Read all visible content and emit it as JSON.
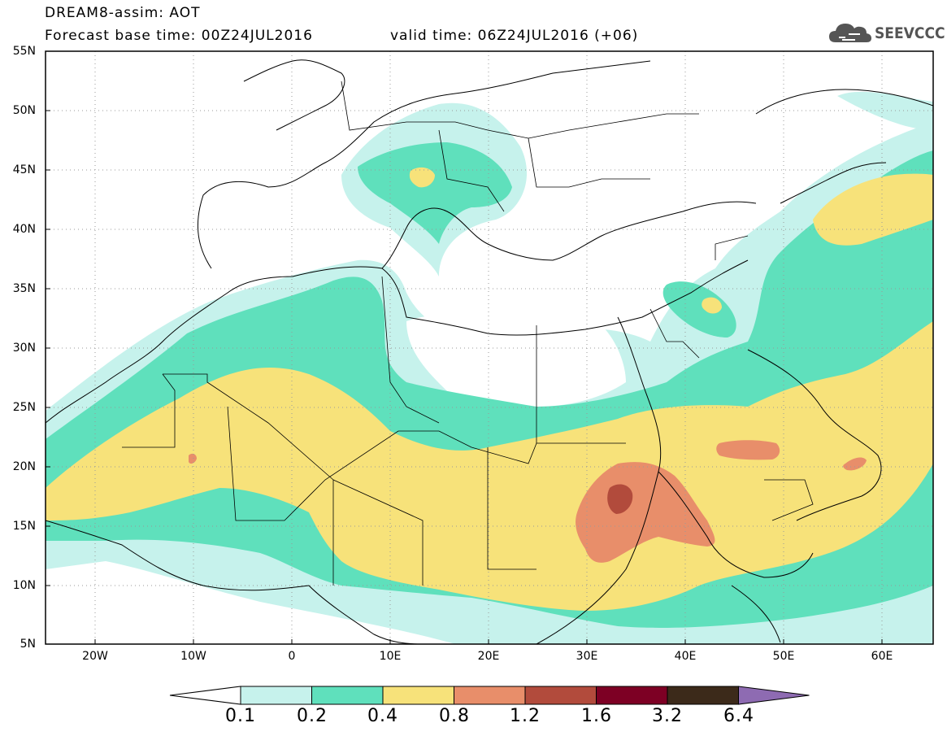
{
  "title": {
    "line1": "DREAM8-assim: AOT",
    "line2": "Forecast base time: 00Z24JUL2016",
    "valid": "valid time: 06Z24JUL2016 (+06)"
  },
  "logo": {
    "text": "SEEVCCC",
    "icon": "cloud-icon"
  },
  "map": {
    "lat_labels": [
      "55N",
      "50N",
      "45N",
      "40N",
      "35N",
      "30N",
      "25N",
      "20N",
      "15N",
      "10N",
      "5N"
    ],
    "lon_labels": [
      "20W",
      "10W",
      "0",
      "10E",
      "20E",
      "30E",
      "40E",
      "50E",
      "60E"
    ],
    "lat_range": [
      5,
      55
    ],
    "lon_range": [
      -25,
      65
    ],
    "field": "Aerosol optical thickness"
  },
  "colorbar": {
    "labels": [
      "0.1",
      "0.2",
      "0.4",
      "0.8",
      "1.2",
      "1.6",
      "3.2",
      "6.4"
    ],
    "colors": [
      "#ffffff",
      "#c6f2ec",
      "#5fe0bc",
      "#f7e27a",
      "#e88e6a",
      "#b24b3c",
      "#7d0024",
      "#3c2a1a",
      "#8e6bb2"
    ]
  }
}
